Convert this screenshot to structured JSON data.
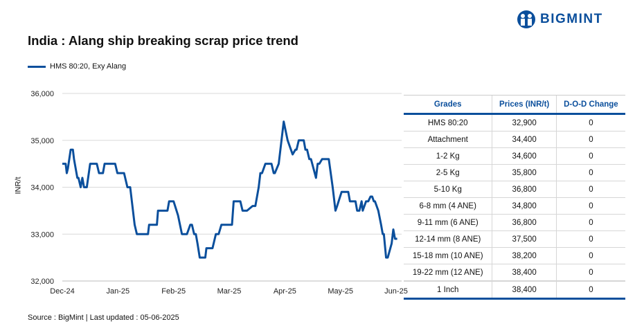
{
  "brand": "BIGMINT",
  "colors": {
    "accent": "#0b4f9c",
    "grid": "#d9d9d9"
  },
  "footer": "Source : BigMint | Last updated : 05-06-2025",
  "chart_data": {
    "type": "line",
    "title": "India : Alang ship breaking scrap price trend",
    "ylabel": "INR/t",
    "xlabel": "",
    "ylim": [
      32000,
      36000
    ],
    "yticks": [
      "32,000",
      "33,000",
      "34,000",
      "35,000",
      "36,000"
    ],
    "ytick_values": [
      32000,
      33000,
      34000,
      35000,
      36000
    ],
    "xticks": [
      "Dec-24",
      "Jan-25",
      "Feb-25",
      "Mar-25",
      "Apr-25",
      "May-25",
      "Jun-25"
    ],
    "x_unit": "months since Dec-24",
    "xlim": [
      0,
      6
    ],
    "legend": "top-left",
    "series": [
      {
        "name": "HMS 80:20, Exy Alang",
        "color": "#0b4f9c",
        "x": [
          0,
          0.06,
          0.08,
          0.1,
          0.15,
          0.19,
          0.21,
          0.27,
          0.29,
          0.33,
          0.36,
          0.39,
          0.44,
          0.5,
          0.62,
          0.66,
          0.73,
          0.76,
          0.95,
          0.99,
          1.11,
          1.17,
          1.22,
          1.3,
          1.34,
          1.54,
          1.56,
          1.7,
          1.72,
          1.89,
          1.92,
          2.0,
          2.08,
          2.15,
          2.24,
          2.3,
          2.33,
          2.37,
          2.4,
          2.43,
          2.47,
          2.57,
          2.59,
          2.7,
          2.76,
          2.81,
          2.86,
          3.05,
          3.08,
          3.2,
          3.24,
          3.32,
          3.42,
          3.47,
          3.53,
          3.56,
          3.59,
          3.65,
          3.76,
          3.8,
          3.82,
          3.89,
          3.98,
          4.05,
          4.14,
          4.19,
          4.21,
          4.25,
          4.34,
          4.37,
          4.4,
          4.44,
          4.47,
          4.56,
          4.59,
          4.62,
          4.67,
          4.79,
          4.86,
          4.91,
          4.94,
          5.02,
          5.14,
          5.17,
          5.27,
          5.3,
          5.34,
          5.38,
          5.4,
          5.46,
          5.5,
          5.54,
          5.57,
          5.6,
          5.62,
          5.68,
          5.73,
          5.76,
          5.78,
          5.82,
          5.85,
          5.92,
          5.95,
          5.98,
          6.02
        ],
        "y": [
          34500,
          34500,
          34300,
          34400,
          34800,
          34800,
          34600,
          34200,
          34200,
          34000,
          34200,
          34000,
          34000,
          34500,
          34500,
          34300,
          34300,
          34500,
          34500,
          34300,
          34300,
          34000,
          34000,
          33200,
          33000,
          33000,
          33200,
          33200,
          33500,
          33500,
          33700,
          33700,
          33400,
          33000,
          33000,
          33200,
          33200,
          33000,
          33000,
          32800,
          32500,
          32500,
          32700,
          32700,
          33000,
          33000,
          33200,
          33200,
          33700,
          33700,
          33500,
          33500,
          33600,
          33600,
          34000,
          34300,
          34300,
          34500,
          34500,
          34300,
          34300,
          34500,
          35400,
          35000,
          34700,
          34800,
          34800,
          35000,
          35000,
          34800,
          34800,
          34600,
          34600,
          34200,
          34500,
          34500,
          34600,
          34600,
          34000,
          33500,
          33600,
          33900,
          33900,
          33700,
          33700,
          33500,
          33500,
          33700,
          33500,
          33700,
          33700,
          33800,
          33800,
          33700,
          33700,
          33500,
          33200,
          33000,
          33000,
          32500,
          32500,
          32800,
          33100,
          32900,
          32900
        ]
      }
    ]
  },
  "table": {
    "headers": [
      "Grades",
      "Prices (INR/t)",
      "D-O-D Change"
    ],
    "rows": [
      [
        "HMS 80:20",
        "32,900",
        "0"
      ],
      [
        "Attachment",
        "34,400",
        "0"
      ],
      [
        "1-2 Kg",
        "34,600",
        "0"
      ],
      [
        "2-5 Kg",
        "35,800",
        "0"
      ],
      [
        "5-10 Kg",
        "36,800",
        "0"
      ],
      [
        "6-8 mm (4 ANE)",
        "34,800",
        "0"
      ],
      [
        "9-11 mm (6 ANE)",
        "36,800",
        "0"
      ],
      [
        "12-14 mm (8 ANE)",
        "37,500",
        "0"
      ],
      [
        "15-18 mm (10 ANE)",
        "38,200",
        "0"
      ],
      [
        "19-22 mm (12 ANE)",
        "38,400",
        "0"
      ],
      [
        "1 Inch",
        "38,400",
        "0"
      ]
    ]
  }
}
